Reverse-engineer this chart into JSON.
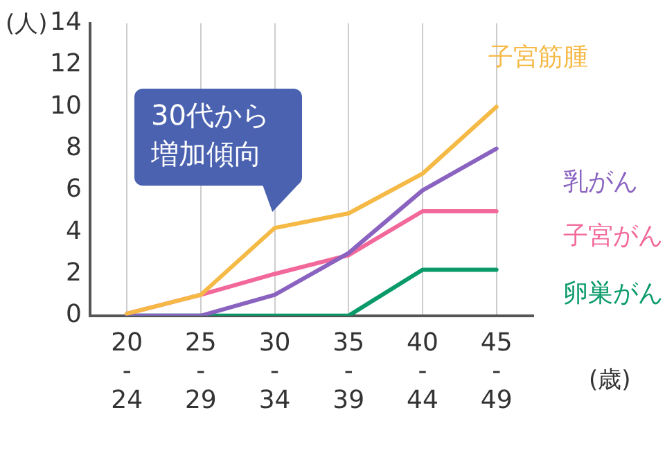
{
  "chart_data": {
    "type": "line",
    "ylabel": "(人)",
    "xlabel": "(歳)",
    "categories": [
      "20-24",
      "25-29",
      "30-34",
      "35-39",
      "40-44",
      "45-49"
    ],
    "series": [
      {
        "name": "子宮筋腫",
        "color": "#f5b945",
        "values": [
          0.1,
          1,
          4.2,
          4.9,
          6.8,
          10
        ]
      },
      {
        "name": "乳がん",
        "color": "#8a63c0",
        "values": [
          0,
          0,
          1,
          3,
          6,
          8
        ]
      },
      {
        "name": "子宮がん",
        "color": "#f2689a",
        "values": [
          0.1,
          1,
          2,
          2.9,
          5,
          5
        ]
      },
      {
        "name": "卵巣がん",
        "color": "#0a9a6a",
        "values": [
          0,
          0,
          0,
          0,
          2.2,
          2.2
        ]
      }
    ],
    "ylim": [
      0,
      14
    ],
    "yticks": [
      0,
      2,
      4,
      6,
      8,
      10,
      12,
      14
    ],
    "grid": "x",
    "legend": false,
    "marker": "none",
    "line_style": "solid",
    "annotations": [
      "30代から",
      "増加傾向"
    ]
  }
}
